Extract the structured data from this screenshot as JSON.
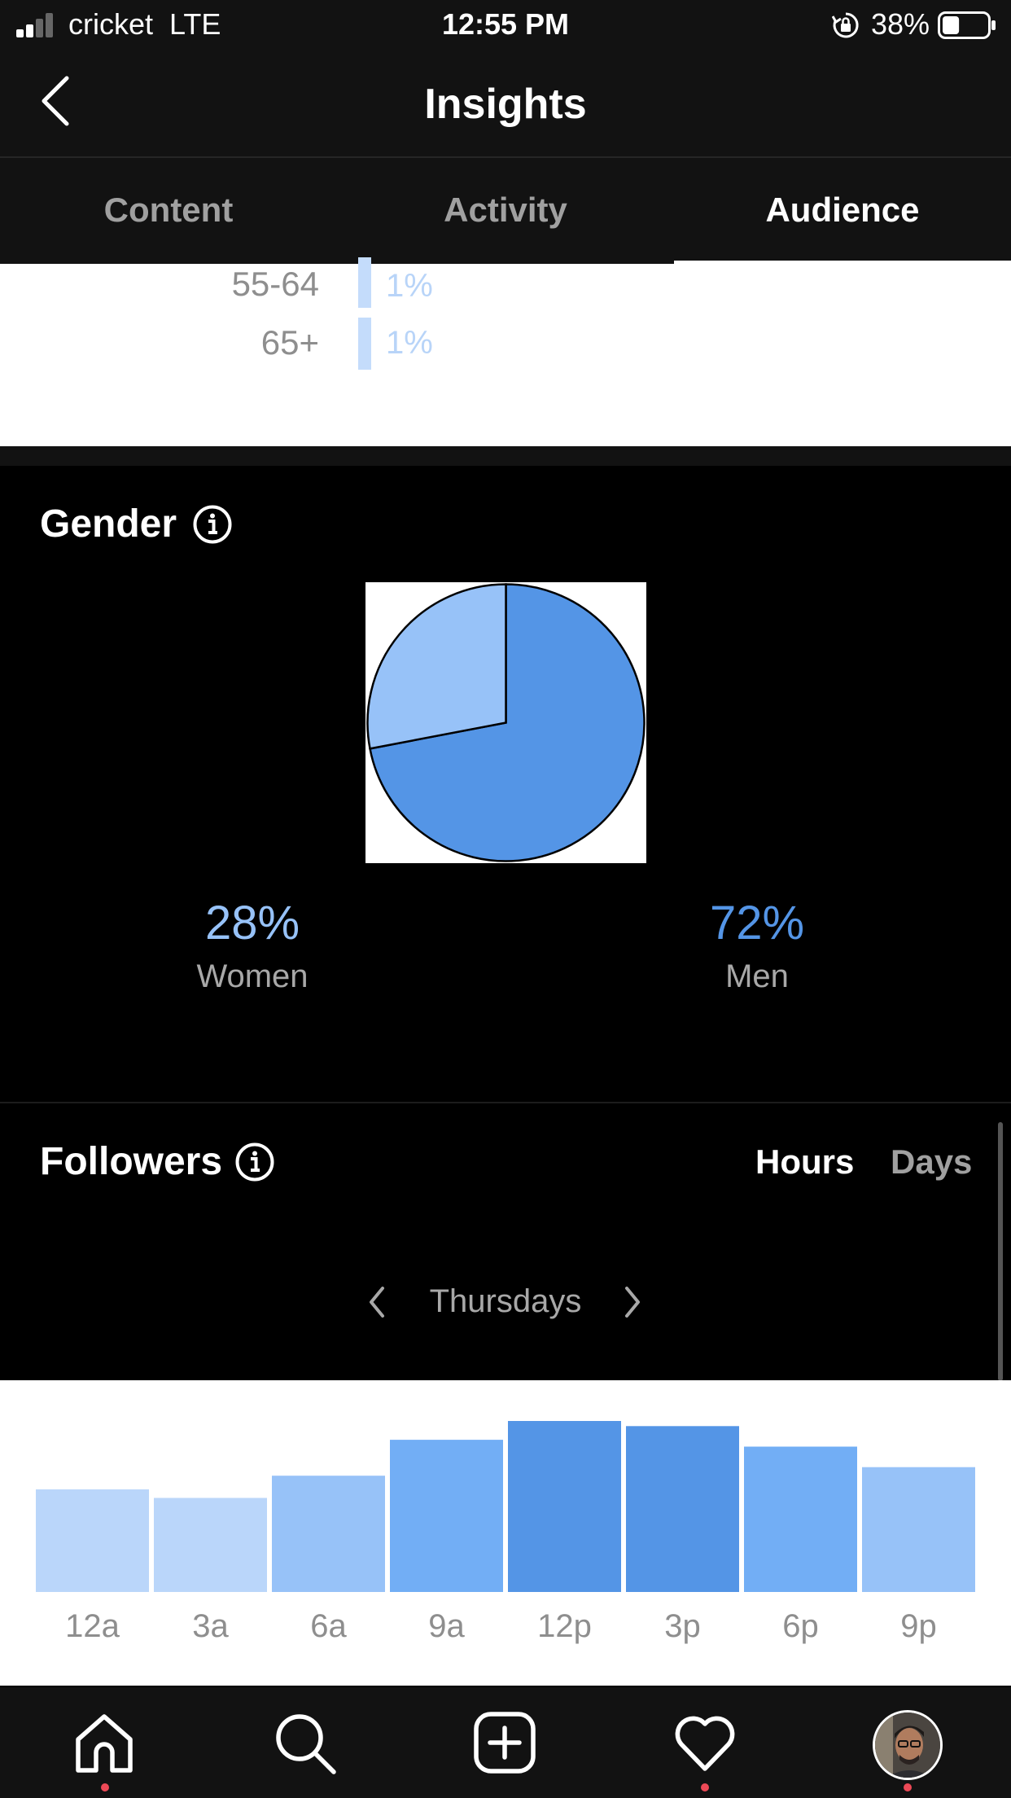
{
  "status_bar": {
    "carrier": "cricket  LTE",
    "time": "12:55 PM",
    "battery_pct": "38%",
    "battery_level": 0.38
  },
  "header": {
    "title": "Insights",
    "back_icon": "chevron-left-icon"
  },
  "tabs": [
    {
      "label": "Content",
      "active": false
    },
    {
      "label": "Activity",
      "active": false
    },
    {
      "label": "Audience",
      "active": true
    }
  ],
  "age_range": {
    "rows": [
      {
        "label": "55-64",
        "pct": "1%"
      },
      {
        "label": "65+",
        "pct": "1%"
      }
    ]
  },
  "gender": {
    "title": "Gender",
    "info_icon": "info-icon",
    "women": {
      "pct": "28%",
      "label": "Women",
      "value": 28,
      "color": "#97c2f8"
    },
    "men": {
      "pct": "72%",
      "label": "Men",
      "value": 72,
      "color": "#5495e6"
    }
  },
  "followers": {
    "title": "Followers",
    "info_icon": "info-icon",
    "toggle_hours": "Hours",
    "toggle_days": "Days",
    "selected_toggle": "Hours",
    "day": "Thursdays"
  },
  "chart_data": {
    "type": "bar",
    "categories": [
      "12a",
      "3a",
      "6a",
      "9a",
      "12p",
      "3p",
      "6p",
      "9p"
    ],
    "values": [
      60,
      55,
      68,
      89,
      100,
      97,
      85,
      73
    ],
    "colors": [
      "#bad6fa",
      "#bad6fa",
      "#97c2f8",
      "#72aef5",
      "#5495e6",
      "#5495e6",
      "#72aef5",
      "#97c2f8"
    ],
    "ylim": [
      0,
      100
    ]
  },
  "tab_bar": {
    "items": [
      "home-icon",
      "search-icon",
      "new-post-icon",
      "activity-heart-icon",
      "profile-avatar"
    ],
    "dot_color": "#ed4956"
  }
}
